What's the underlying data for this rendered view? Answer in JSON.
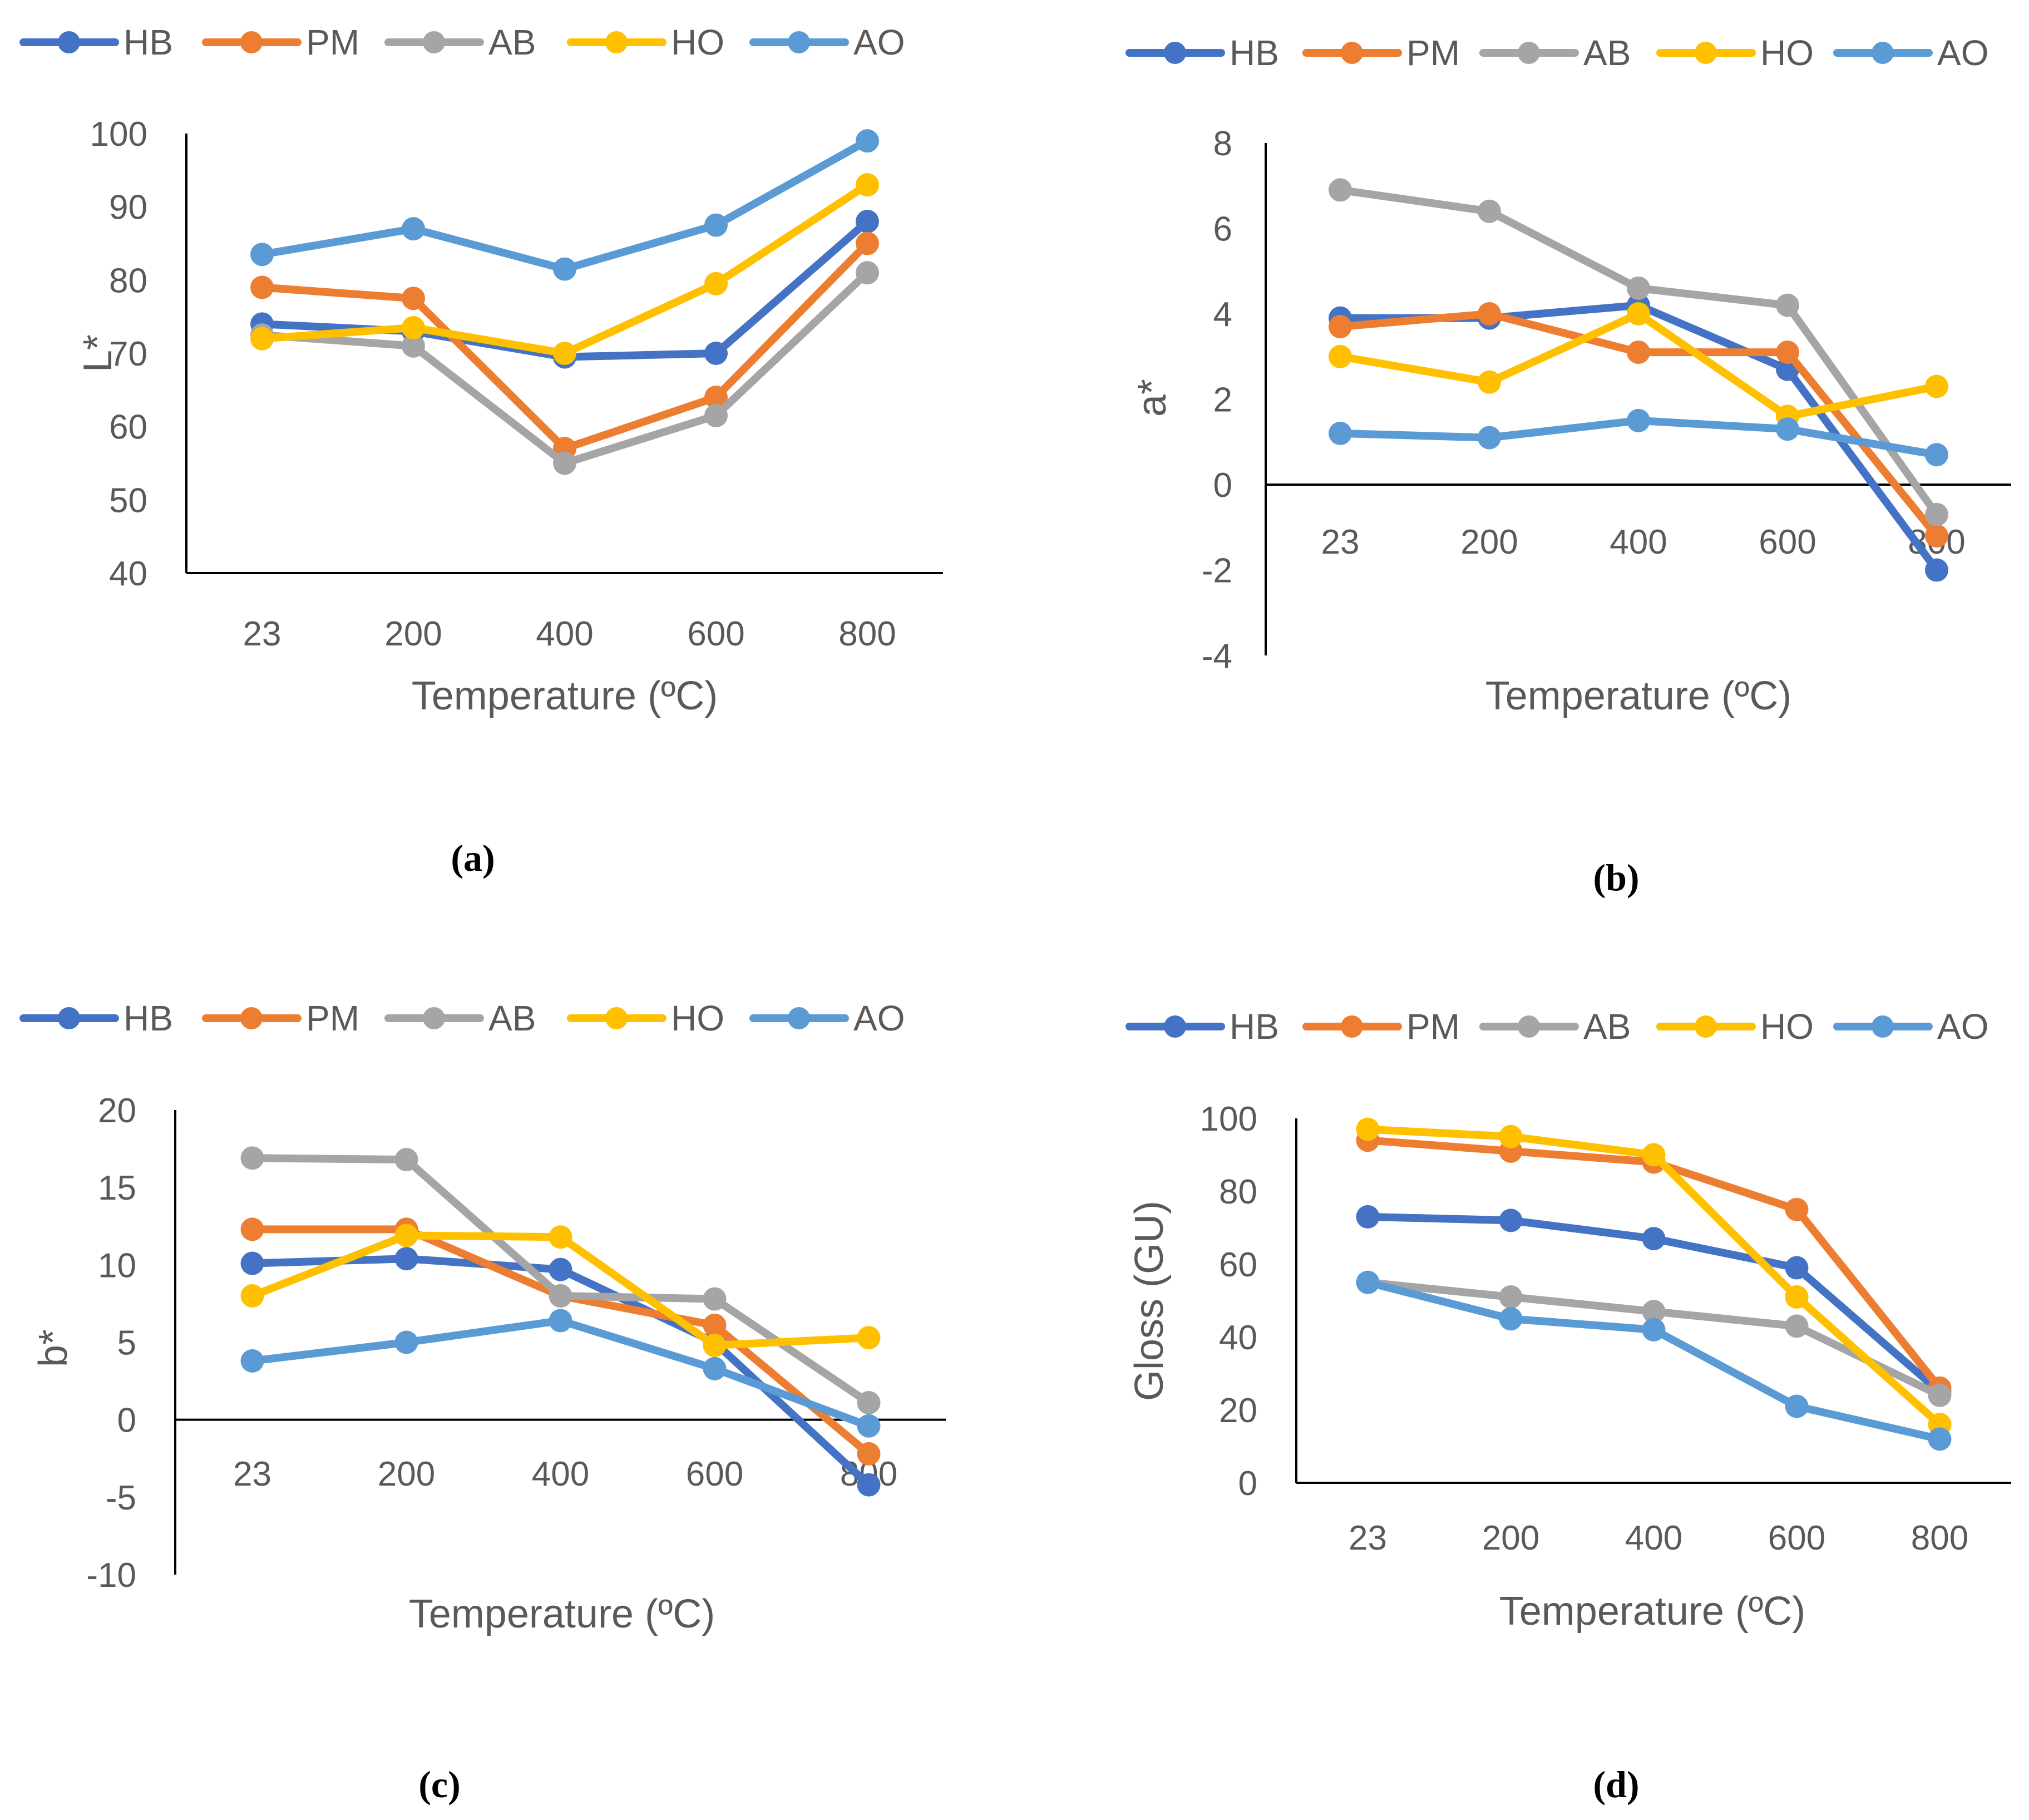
{
  "series_colors": {
    "HB": "#4472C4",
    "PM": "#ED7D31",
    "AB": "#A5A5A5",
    "HO": "#FFC000",
    "AO": "#5B9BD5"
  },
  "chart_data": [
    {
      "id": "a",
      "type": "line",
      "panel_label": "(a)",
      "xlabel": "Temperature (ºC)",
      "ylabel": "L*",
      "categories": [
        "23",
        "200",
        "400",
        "600",
        "800"
      ],
      "ylim": [
        40,
        100
      ],
      "yticks": [
        40,
        50,
        60,
        70,
        80,
        90,
        100
      ],
      "legend": [
        "HB",
        "PM",
        "AB",
        "HO",
        "AO"
      ],
      "series": [
        {
          "name": "HB",
          "values": [
            74,
            73,
            69.5,
            70,
            88
          ]
        },
        {
          "name": "PM",
          "values": [
            79,
            77.5,
            57,
            64,
            85
          ]
        },
        {
          "name": "AB",
          "values": [
            72.5,
            71,
            55,
            61.5,
            81
          ]
        },
        {
          "name": "HO",
          "values": [
            72,
            73.5,
            70,
            79.5,
            93
          ]
        },
        {
          "name": "AO",
          "values": [
            83.5,
            87,
            81.5,
            87.5,
            99
          ]
        }
      ]
    },
    {
      "id": "b",
      "type": "line",
      "panel_label": "(b)",
      "xlabel": "Temperature (ºC)",
      "ylabel": "a*",
      "categories": [
        "23",
        "200",
        "400",
        "600",
        "800"
      ],
      "ylim": [
        -4,
        8
      ],
      "yticks": [
        -4,
        -2,
        0,
        2,
        4,
        6,
        8
      ],
      "legend": [
        "HB",
        "PM",
        "AB",
        "HO",
        "AO"
      ],
      "series": [
        {
          "name": "HB",
          "values": [
            3.9,
            3.9,
            4.2,
            2.7,
            -2.0
          ]
        },
        {
          "name": "PM",
          "values": [
            3.7,
            4.0,
            3.1,
            3.1,
            -1.2
          ]
        },
        {
          "name": "AB",
          "values": [
            6.9,
            6.4,
            4.6,
            4.2,
            -0.7
          ]
        },
        {
          "name": "HO",
          "values": [
            3.0,
            2.4,
            4.0,
            1.6,
            2.3
          ]
        },
        {
          "name": "AO",
          "values": [
            1.2,
            1.1,
            1.5,
            1.3,
            0.7
          ]
        }
      ]
    },
    {
      "id": "c",
      "type": "line",
      "panel_label": "(c)",
      "xlabel": "Temperature (ºC)",
      "ylabel": "b*",
      "categories": [
        "23",
        "200",
        "400",
        "600",
        "800"
      ],
      "ylim": [
        -10,
        20
      ],
      "yticks": [
        -10,
        -5,
        0,
        5,
        10,
        15,
        20
      ],
      "legend": [
        "HB",
        "PM",
        "AB",
        "HO",
        "AO"
      ],
      "series": [
        {
          "name": "HB",
          "values": [
            10.1,
            10.4,
            9.7,
            5.0,
            -4.2
          ]
        },
        {
          "name": "PM",
          "values": [
            12.3,
            12.3,
            8.0,
            6.1,
            -2.2
          ]
        },
        {
          "name": "AB",
          "values": [
            16.9,
            16.8,
            8.0,
            7.8,
            1.1
          ]
        },
        {
          "name": "HO",
          "values": [
            8.0,
            11.9,
            11.8,
            4.8,
            5.3
          ]
        },
        {
          "name": "AO",
          "values": [
            3.8,
            5.0,
            6.4,
            3.3,
            -0.4
          ]
        }
      ]
    },
    {
      "id": "d",
      "type": "line",
      "panel_label": "(d)",
      "xlabel": "Temperature (ºC)",
      "ylabel": "Gloss (GU)",
      "categories": [
        "23",
        "200",
        "400",
        "600",
        "800"
      ],
      "ylim": [
        0,
        100
      ],
      "yticks": [
        0,
        20,
        40,
        60,
        80,
        100
      ],
      "legend": [
        "HB",
        "PM",
        "AB",
        "HO",
        "AO"
      ],
      "series": [
        {
          "name": "HB",
          "values": [
            73,
            72,
            67,
            59,
            25
          ]
        },
        {
          "name": "PM",
          "values": [
            94,
            91,
            88,
            75,
            26
          ]
        },
        {
          "name": "AB",
          "values": [
            55,
            51,
            47,
            43,
            24
          ]
        },
        {
          "name": "HO",
          "values": [
            97,
            95,
            90,
            51,
            16
          ]
        },
        {
          "name": "AO",
          "values": [
            55,
            45,
            42,
            21,
            12
          ]
        }
      ]
    }
  ]
}
